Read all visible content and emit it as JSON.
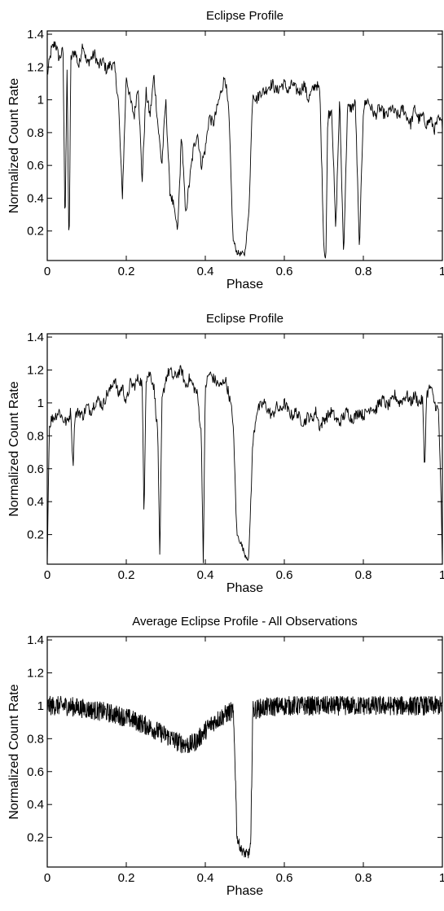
{
  "chart_data": [
    {
      "type": "line",
      "title": "Eclipse Profile",
      "xlabel": "Phase",
      "ylabel": "Normalized Count Rate",
      "xlim": [
        0,
        1
      ],
      "ylim": [
        0.02,
        1.42
      ],
      "xticks": [
        "0",
        "0.2",
        "0.4",
        "0.6",
        "0.8",
        "1"
      ],
      "yticks": [
        "0.2",
        "0.4",
        "0.6",
        "0.8",
        "1",
        "1.2",
        "1.4"
      ],
      "grid": false,
      "series": [
        {
          "color": "#000000",
          "x": [
            0,
            0.01,
            0.02,
            0.03,
            0.04,
            0.045,
            0.05,
            0.055,
            0.06,
            0.07,
            0.08,
            0.09,
            0.1,
            0.11,
            0.12,
            0.13,
            0.14,
            0.15,
            0.16,
            0.17,
            0.18,
            0.19,
            0.2,
            0.21,
            0.22,
            0.23,
            0.24,
            0.25,
            0.26,
            0.27,
            0.28,
            0.29,
            0.3,
            0.31,
            0.32,
            0.33,
            0.34,
            0.35,
            0.36,
            0.37,
            0.38,
            0.39,
            0.4,
            0.41,
            0.42,
            0.43,
            0.44,
            0.45,
            0.46,
            0.47,
            0.48,
            0.49,
            0.5,
            0.51,
            0.52,
            0.53,
            0.54,
            0.55,
            0.56,
            0.57,
            0.58,
            0.59,
            0.6,
            0.61,
            0.62,
            0.63,
            0.64,
            0.65,
            0.66,
            0.67,
            0.68,
            0.69,
            0.7,
            0.705,
            0.71,
            0.72,
            0.73,
            0.74,
            0.75,
            0.76,
            0.77,
            0.78,
            0.79,
            0.8,
            0.81,
            0.82,
            0.83,
            0.84,
            0.85,
            0.86,
            0.87,
            0.88,
            0.89,
            0.9,
            0.91,
            0.92,
            0.93,
            0.94,
            0.95,
            0.96,
            0.97,
            0.98,
            0.99,
            1.0
          ],
          "y": [
            1.15,
            1.3,
            1.35,
            1.25,
            1.3,
            0.22,
            1.2,
            0.05,
            1.25,
            1.3,
            1.2,
            1.35,
            1.22,
            1.25,
            1.28,
            1.2,
            1.24,
            1.18,
            1.22,
            1.2,
            1.0,
            0.4,
            1.15,
            1.0,
            0.9,
            1.1,
            0.5,
            1.05,
            0.9,
            1.15,
            0.85,
            0.6,
            1.0,
            0.45,
            0.35,
            0.2,
            0.8,
            0.3,
            0.5,
            0.7,
            0.8,
            0.6,
            0.7,
            0.9,
            0.85,
            0.95,
            1.05,
            1.15,
            0.9,
            0.15,
            0.07,
            0.06,
            0.06,
            0.3,
            1.05,
            1.0,
            1.05,
            1.05,
            1.08,
            1.1,
            1.05,
            1.08,
            1.1,
            1.05,
            1.1,
            1.06,
            1.05,
            1.1,
            1.0,
            1.05,
            1.1,
            1.05,
            0.1,
            0.02,
            0.9,
            0.95,
            0.2,
            1.0,
            0.05,
            0.95,
            0.95,
            0.98,
            0.08,
            0.95,
            1.0,
            0.95,
            0.9,
            0.95,
            0.92,
            0.9,
            0.95,
            0.92,
            0.9,
            0.95,
            0.9,
            0.85,
            0.95,
            0.88,
            0.9,
            0.85,
            0.88,
            0.82,
            0.88,
            0.85
          ]
        }
      ]
    },
    {
      "type": "line",
      "title": "Eclipse Profile",
      "xlabel": "Phase",
      "ylabel": "Normalized Count Rate",
      "xlim": [
        0,
        1
      ],
      "ylim": [
        0.02,
        1.42
      ],
      "xticks": [
        "0",
        "0.2",
        "0.4",
        "0.6",
        "0.8",
        "1"
      ],
      "yticks": [
        "0.2",
        "0.4",
        "0.6",
        "0.8",
        "1",
        "1.2",
        "1.4"
      ],
      "grid": false,
      "series": [
        {
          "color": "#000000",
          "x": [
            0,
            0.005,
            0.01,
            0.02,
            0.03,
            0.04,
            0.05,
            0.06,
            0.065,
            0.07,
            0.08,
            0.09,
            0.1,
            0.11,
            0.12,
            0.13,
            0.14,
            0.15,
            0.16,
            0.17,
            0.18,
            0.19,
            0.2,
            0.21,
            0.22,
            0.23,
            0.24,
            0.245,
            0.25,
            0.26,
            0.27,
            0.28,
            0.285,
            0.29,
            0.3,
            0.31,
            0.32,
            0.33,
            0.34,
            0.35,
            0.36,
            0.37,
            0.38,
            0.39,
            0.395,
            0.4,
            0.41,
            0.42,
            0.43,
            0.44,
            0.45,
            0.46,
            0.47,
            0.48,
            0.49,
            0.5,
            0.51,
            0.52,
            0.53,
            0.54,
            0.55,
            0.56,
            0.57,
            0.58,
            0.59,
            0.6,
            0.61,
            0.62,
            0.63,
            0.64,
            0.65,
            0.66,
            0.67,
            0.68,
            0.69,
            0.7,
            0.71,
            0.72,
            0.73,
            0.74,
            0.75,
            0.76,
            0.77,
            0.78,
            0.79,
            0.8,
            0.81,
            0.82,
            0.83,
            0.84,
            0.85,
            0.86,
            0.87,
            0.88,
            0.89,
            0.9,
            0.91,
            0.92,
            0.93,
            0.94,
            0.95,
            0.955,
            0.96,
            0.97,
            0.98,
            0.99,
            0.995,
            1.0
          ],
          "y": [
            0.02,
            0.85,
            0.9,
            0.92,
            0.95,
            0.9,
            0.88,
            0.95,
            0.6,
            0.92,
            0.95,
            0.92,
            0.98,
            0.95,
            1.0,
            1.02,
            0.98,
            1.05,
            1.08,
            1.15,
            1.05,
            1.1,
            1.0,
            1.12,
            1.1,
            1.15,
            1.12,
            0.3,
            1.15,
            1.18,
            1.1,
            0.8,
            0.02,
            1.0,
            1.15,
            1.2,
            1.15,
            1.18,
            1.2,
            1.1,
            1.15,
            1.1,
            1.05,
            0.8,
            0.02,
            1.1,
            1.18,
            1.15,
            1.12,
            1.1,
            1.15,
            1.05,
            0.9,
            0.2,
            0.15,
            0.08,
            0.05,
            0.75,
            0.95,
            0.98,
            1.0,
            0.95,
            0.92,
            0.98,
            0.95,
            1.0,
            0.95,
            0.92,
            0.95,
            0.9,
            0.88,
            0.92,
            0.9,
            0.95,
            0.85,
            0.9,
            0.92,
            0.95,
            0.9,
            0.88,
            0.92,
            0.95,
            0.9,
            0.92,
            0.95,
            0.92,
            0.95,
            0.98,
            0.95,
            1.0,
            1.02,
            0.98,
            1.0,
            1.05,
            1.0,
            1.02,
            1.05,
            1.0,
            1.05,
            1.0,
            1.02,
            0.58,
            1.05,
            1.1,
            1.0,
            0.95,
            0.6,
            0.02
          ]
        }
      ]
    },
    {
      "type": "line",
      "title": "Average Eclipse Profile - All Observations",
      "xlabel": "Phase",
      "ylabel": "Normalized Count Rate",
      "xlim": [
        0,
        1
      ],
      "ylim": [
        0.02,
        1.42
      ],
      "xticks": [
        "0",
        "0.2",
        "0.4",
        "0.6",
        "0.8",
        "1"
      ],
      "yticks": [
        "0.2",
        "0.4",
        "0.6",
        "0.8",
        "1",
        "1.2",
        "1.4"
      ],
      "grid": false,
      "series": [
        {
          "color": "#000000",
          "x": [
            0,
            0.05,
            0.1,
            0.15,
            0.2,
            0.25,
            0.3,
            0.33,
            0.36,
            0.38,
            0.4,
            0.42,
            0.44,
            0.46,
            0.47,
            0.475,
            0.48,
            0.49,
            0.5,
            0.51,
            0.515,
            0.52,
            0.53,
            0.55,
            0.6,
            0.65,
            0.7,
            0.75,
            0.8,
            0.85,
            0.9,
            0.95,
            1.0
          ],
          "y": [
            1.0,
            1.0,
            0.98,
            0.96,
            0.93,
            0.88,
            0.82,
            0.78,
            0.76,
            0.79,
            0.85,
            0.9,
            0.93,
            0.96,
            0.97,
            0.7,
            0.2,
            0.13,
            0.1,
            0.1,
            0.15,
            0.97,
            0.98,
            0.99,
            1.0,
            1.0,
            1.0,
            1.0,
            1.0,
            1.0,
            1.0,
            1.0,
            1.0
          ]
        }
      ]
    }
  ]
}
